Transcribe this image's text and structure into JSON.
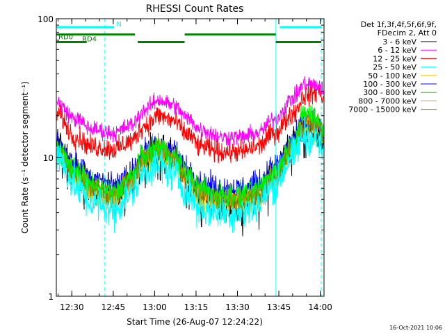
{
  "chart_data": {
    "type": "line",
    "title": "RHESSI Count Rates",
    "xlabel": "Start Time (26-Aug-07 12:24:22)",
    "ylabel": "Count Rate (s⁻¹ detector segment⁻¹)",
    "y_scale": "log",
    "ylim": [
      1,
      100
    ],
    "xlim_minutes": [
      0,
      97
    ],
    "x_tick_labels": [
      "12:30",
      "12:45",
      "13:00",
      "13:15",
      "13:30",
      "13:45",
      "14:00"
    ],
    "x_tick_minutes": [
      5.63,
      20.63,
      35.63,
      50.63,
      65.63,
      80.63,
      95.63
    ],
    "y_tick_labels": [
      "1",
      "10",
      "100"
    ],
    "y_tick_values": [
      1,
      10,
      100
    ],
    "legend_header": [
      "Det 1f,3f,4f,5f,6f,9f,",
      "FDecim 2, Att 0"
    ],
    "legend_position": "right",
    "x_knots_minutes": [
      0,
      7,
      13,
      21,
      27,
      32,
      37,
      42,
      48,
      52,
      60,
      67,
      73,
      79,
      86,
      90,
      95,
      97
    ],
    "series": [
      {
        "name": "3 - 6 keV",
        "color": "#000000",
        "values": [
          13,
          8.2,
          6.1,
          5.2,
          6.8,
          10,
          11.5,
          10,
          7.0,
          5.3,
          4.6,
          4.5,
          5.0,
          7.0,
          12.5,
          16.5,
          15,
          12
        ]
      },
      {
        "name": "6 - 12 keV",
        "color": "#ff00ff",
        "values": [
          25,
          19,
          16,
          15,
          17,
          22,
          26,
          24,
          19,
          16,
          14,
          14,
          15,
          19,
          27,
          34,
          33,
          30
        ]
      },
      {
        "name": "12 - 25 keV",
        "color": "#ff0000",
        "values": [
          21,
          14,
          12,
          11.5,
          13,
          17,
          20,
          18.5,
          14.5,
          12,
          11,
          11,
          12,
          15,
          21,
          28,
          30,
          27
        ]
      },
      {
        "name": "25 - 50 keV",
        "color": "#00ffff",
        "values": [
          10.5,
          6.2,
          4.7,
          4.2,
          5.5,
          7.8,
          8.8,
          7.8,
          5.5,
          4.3,
          4.0,
          4.0,
          4.5,
          6.3,
          10.5,
          14.5,
          13,
          10
        ]
      },
      {
        "name": "50 - 100 keV",
        "color": "#ffcc00",
        "values": [
          11.5,
          7.3,
          5.6,
          4.9,
          6.5,
          9.6,
          11,
          9.6,
          6.7,
          5.2,
          4.8,
          4.8,
          5.2,
          7.3,
          12,
          17.5,
          16,
          13
        ]
      },
      {
        "name": "100 - 300 keV",
        "color": "#0000ff",
        "values": [
          12.5,
          9.2,
          7.0,
          6.2,
          7.8,
          11,
          12.5,
          11,
          8.2,
          6.6,
          6.0,
          6.0,
          6.5,
          8.6,
          13.5,
          17.5,
          17,
          14.5
        ]
      },
      {
        "name": "300 - 800 keV",
        "color": "#00ee00",
        "values": [
          11.5,
          8.2,
          6.3,
          5.6,
          7.2,
          10.5,
          12,
          10.5,
          7.5,
          6.0,
          5.4,
          5.4,
          5.9,
          8.0,
          13,
          21,
          19,
          15.5
        ]
      },
      {
        "name": "800 - 7000 keV",
        "color": "#ff8800",
        "values": [
          11,
          7.8,
          6.0,
          5.3,
          6.8,
          10,
          11.5,
          10,
          7.1,
          5.6,
          5.0,
          5.0,
          5.4,
          7.4,
          12.2,
          18.5,
          17.5,
          14.5
        ]
      },
      {
        "name": "7000 - 15000 keV",
        "color": "#808000",
        "values": [
          11,
          7.6,
          5.9,
          5.2,
          6.7,
          9.9,
          11.4,
          9.9,
          7.0,
          5.5,
          4.9,
          4.9,
          5.3,
          7.2,
          12,
          18,
          17,
          14
        ]
      }
    ],
    "state_bars": [
      {
        "label": "N",
        "color": "#00ffff",
        "y_value": 87,
        "segments": [
          [
            0,
            21
          ],
          [
            81,
            96
          ]
        ]
      },
      {
        "label": "RD0",
        "color": "#008000",
        "y_value": 77,
        "segments": [
          [
            0,
            28.5
          ],
          [
            46.5,
            79.5
          ]
        ]
      },
      {
        "label": "RD4",
        "color": "#008000",
        "y_value": 68,
        "segments": [
          [
            0,
            11
          ],
          [
            29.5,
            46.5
          ],
          [
            79.5,
            96
          ]
        ]
      }
    ],
    "vertical_markers": [
      {
        "color": "#00ffff",
        "style": "solid",
        "x_minutes": 0
      },
      {
        "color": "#00ffff",
        "style": "dashed",
        "x_minutes": 17.6
      },
      {
        "color": "#00ffff",
        "style": "solid",
        "x_minutes": 79.6
      },
      {
        "color": "#00ffff",
        "style": "dashed",
        "x_minutes": 96
      }
    ]
  },
  "footer": {
    "timestamp": "16-Oct-2021 10:06"
  }
}
